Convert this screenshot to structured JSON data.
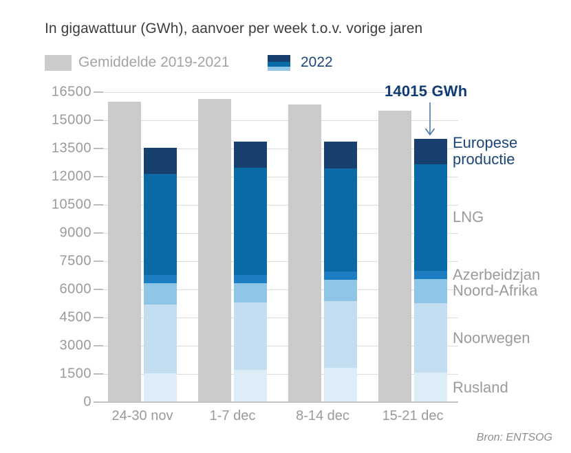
{
  "title": "In gigawattuur (GWh), aanvoer per week t.o.v. vorige jaren",
  "legend": {
    "avg_label": "Gemiddelde 2019-2021",
    "year_label": "2022"
  },
  "annotation": {
    "text": "14015 GWh"
  },
  "source": "Bron: ENTSOG",
  "colors": {
    "average_bar": "#cbcbcb",
    "europese_productie": "#17406e",
    "lng": "#0a6aa6",
    "azerbeidzjan": "#1d7dc2",
    "noord_afrika": "#8fc6e8",
    "noorwegen": "#c3ddf1",
    "rusland": "#ddedf7",
    "navy_text": "#1c4678",
    "gray_text": "#9b9b9b",
    "title_text": "#3d3d3d",
    "gridline": "#dcdcdc",
    "baseline": "#c2c2c2",
    "arrow": "#4e79a6",
    "source_text": "#8d8d8d"
  },
  "chart_data": {
    "type": "bar",
    "subtype": "grouped: gray average bar + stacked 2022 bar per week",
    "title": "In gigawattuur (GWh), aanvoer per week t.o.v. vorige jaren",
    "categories": [
      "24-30 nov",
      "1-7 dec",
      "8-14 dec",
      "15-21 dec"
    ],
    "ylabel": "GWh",
    "ylim": [
      0,
      16500
    ],
    "ytick_step": 1500,
    "grid": true,
    "legend_position": "top",
    "average_series": {
      "name": "Gemiddelde 2019-2021",
      "color": "#cbcbcb",
      "values": [
        16000,
        16150,
        15850,
        15500
      ]
    },
    "stacked_series_2022": {
      "name": "2022",
      "totals": [
        13535,
        13870,
        13870,
        14015
      ],
      "segments_bottom_to_top": [
        {
          "label": "Rusland",
          "color": "#ddedf7",
          "label_color": "#9b9b9b",
          "values": [
            1535,
            1720,
            1830,
            1570
          ]
        },
        {
          "label": "Noorwegen",
          "color": "#c3ddf1",
          "label_color": "#9b9b9b",
          "values": [
            3655,
            3585,
            3550,
            3700
          ]
        },
        {
          "label": "Noord-Afrika",
          "color": "#8fc6e8",
          "label_color": "#9b9b9b",
          "values": [
            1135,
            1025,
            1135,
            1280
          ]
        },
        {
          "label": "Azerbeidzjan",
          "color": "#1d7dc2",
          "label_color": "#9b9b9b",
          "values": [
            440,
            440,
            440,
            440
          ]
        },
        {
          "label": "LNG",
          "color": "#0a6aa6",
          "label_color": "#9b9b9b",
          "values": [
            5380,
            5710,
            5490,
            5670
          ]
        },
        {
          "label": "Europese productie",
          "color": "#17406e",
          "label_color": "#1c4678",
          "values": [
            1390,
            1390,
            1425,
            1355
          ]
        }
      ]
    },
    "annotation": {
      "text": "14015 GWh",
      "target": "top of 2022 stacked bar, week 15-21 dec"
    }
  }
}
